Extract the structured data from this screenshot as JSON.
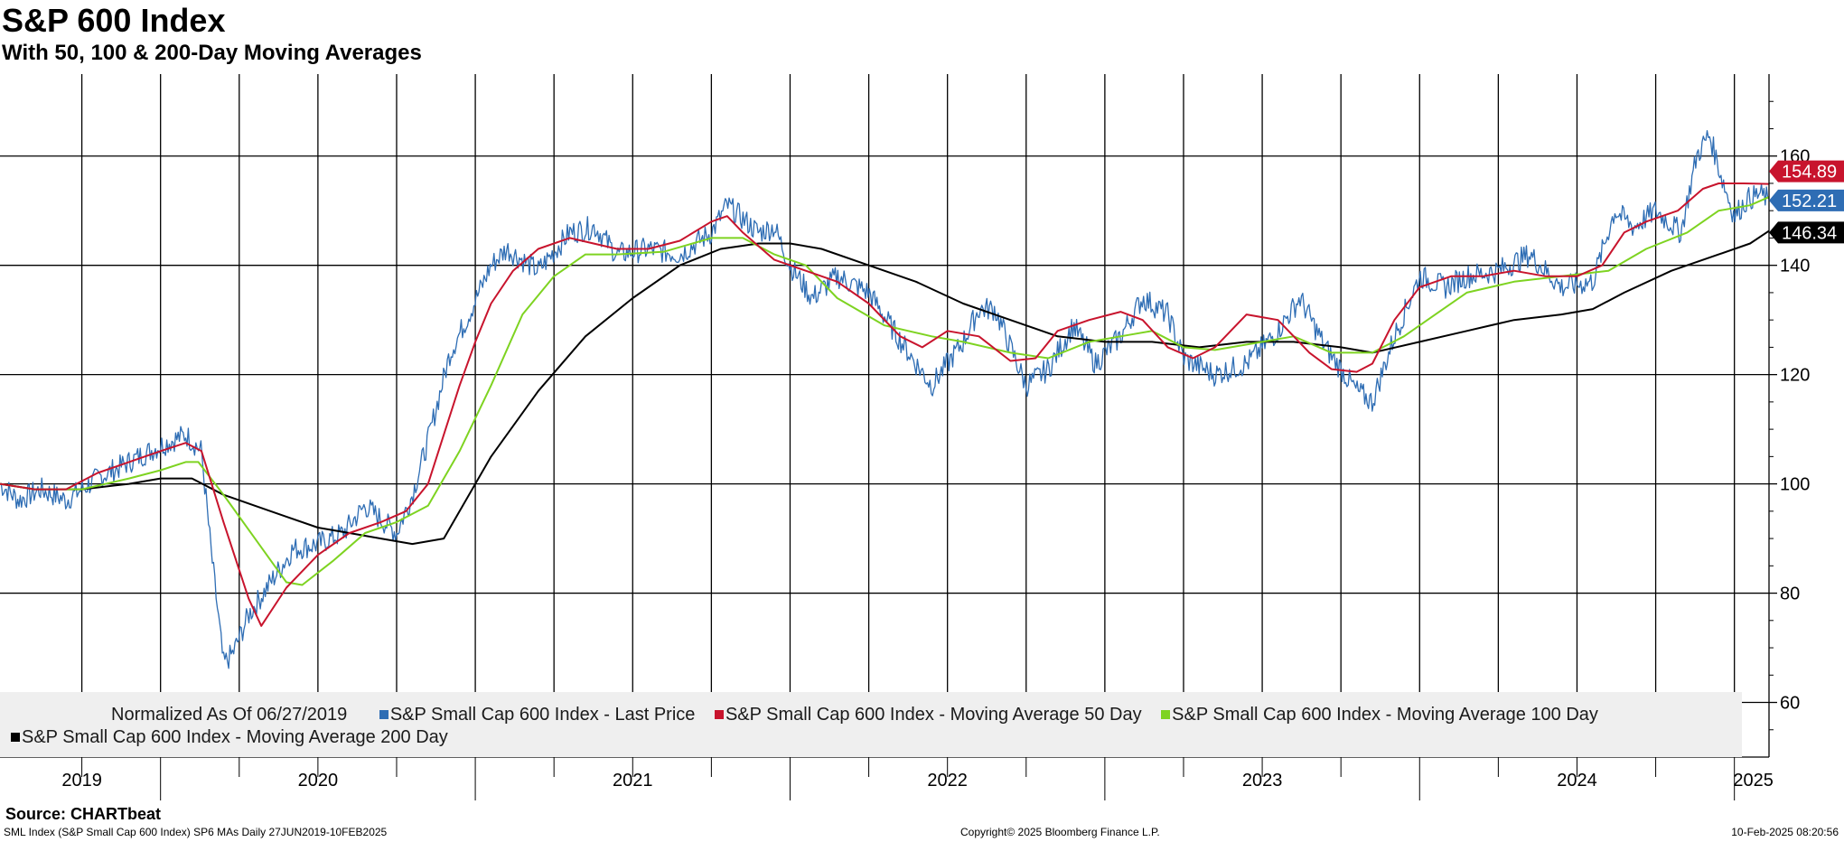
{
  "header": {
    "title": "S&P 600 Index",
    "subtitle": "With 50, 100 & 200-Day Moving Averages"
  },
  "legend": {
    "normalized_note": "Normalized As Of 06/27/2019",
    "items": [
      {
        "label": "S&P Small Cap 600 Index - Last Price",
        "color": "#2e6db4"
      },
      {
        "label": "S&P Small Cap 600 Index - Moving Average 50 Day",
        "color": "#c8142d"
      },
      {
        "label": "S&P Small Cap 600 Index - Moving Average 100 Day",
        "color": "#7ed321"
      },
      {
        "label": "S&P Small Cap 600 Index - Moving Average 200 Day",
        "color": "#000000"
      }
    ]
  },
  "footer": {
    "source": "Source: CHARTbeat",
    "ticker_info": "SML Index (S&P Small Cap 600 Index) SP6 MAs  Daily 27JUN2019-10FEB2025",
    "copyright": "Copyright© 2025 Bloomberg Finance L.P.",
    "timestamp": "10-Feb-2025 08:20:56"
  },
  "chart_data": {
    "type": "line",
    "title": "S&P 600 Index",
    "subtitle": "With 50, 100 & 200-Day Moving Averages",
    "x_range": [
      2019.49,
      2025.11
    ],
    "ylim": [
      50,
      175
    ],
    "y_ticks": [
      60,
      80,
      100,
      120,
      140,
      160
    ],
    "x_labels": [
      {
        "label": "2019",
        "pos": 2019.75
      },
      {
        "label": "2020",
        "pos": 2020.5
      },
      {
        "label": "2021",
        "pos": 2021.5
      },
      {
        "label": "2022",
        "pos": 2022.5
      },
      {
        "label": "2023",
        "pos": 2023.5
      },
      {
        "label": "2024",
        "pos": 2024.5
      },
      {
        "label": "2025",
        "pos": 2025.06
      }
    ],
    "year_boundaries": [
      2020.0,
      2021.0,
      2022.0,
      2023.0,
      2024.0,
      2025.0
    ],
    "grid": true,
    "legend_position": "bottom",
    "series": [
      {
        "name": "S&P Small Cap 600 Index - Last Price",
        "color": "#2e6db4",
        "last_value": "152.21",
        "noise": 2.2,
        "points": [
          [
            2019.49,
            100
          ],
          [
            2019.55,
            97
          ],
          [
            2019.62,
            99
          ],
          [
            2019.7,
            97
          ],
          [
            2019.8,
            101
          ],
          [
            2019.9,
            104
          ],
          [
            2020.0,
            107
          ],
          [
            2020.08,
            109
          ],
          [
            2020.13,
            106
          ],
          [
            2020.16,
            88
          ],
          [
            2020.2,
            67
          ],
          [
            2020.23,
            69
          ],
          [
            2020.28,
            76
          ],
          [
            2020.35,
            82
          ],
          [
            2020.42,
            88
          ],
          [
            2020.5,
            89
          ],
          [
            2020.58,
            91
          ],
          [
            2020.65,
            96
          ],
          [
            2020.75,
            91
          ],
          [
            2020.8,
            98
          ],
          [
            2020.85,
            108
          ],
          [
            2020.92,
            124
          ],
          [
            2020.98,
            131
          ],
          [
            2021.05,
            140
          ],
          [
            2021.1,
            143
          ],
          [
            2021.2,
            139
          ],
          [
            2021.3,
            146
          ],
          [
            2021.38,
            147
          ],
          [
            2021.45,
            142
          ],
          [
            2021.55,
            143
          ],
          [
            2021.65,
            142
          ],
          [
            2021.75,
            146
          ],
          [
            2021.8,
            151
          ],
          [
            2021.9,
            146
          ],
          [
            2021.95,
            147
          ],
          [
            2022.0,
            140
          ],
          [
            2022.07,
            134
          ],
          [
            2022.15,
            138
          ],
          [
            2022.25,
            135
          ],
          [
            2022.33,
            128
          ],
          [
            2022.4,
            122
          ],
          [
            2022.45,
            118
          ],
          [
            2022.55,
            126
          ],
          [
            2022.6,
            132
          ],
          [
            2022.65,
            132
          ],
          [
            2022.75,
            118
          ],
          [
            2022.82,
            121
          ],
          [
            2022.9,
            129
          ],
          [
            2022.97,
            122
          ],
          [
            2023.05,
            127
          ],
          [
            2023.12,
            134
          ],
          [
            2023.2,
            131
          ],
          [
            2023.25,
            123
          ],
          [
            2023.35,
            120
          ],
          [
            2023.45,
            122
          ],
          [
            2023.55,
            128
          ],
          [
            2023.62,
            134
          ],
          [
            2023.7,
            125
          ],
          [
            2023.8,
            117
          ],
          [
            2023.85,
            115
          ],
          [
            2023.92,
            127
          ],
          [
            2024.0,
            138
          ],
          [
            2024.08,
            136
          ],
          [
            2024.15,
            138
          ],
          [
            2024.25,
            139
          ],
          [
            2024.35,
            142
          ],
          [
            2024.45,
            136
          ],
          [
            2024.55,
            137
          ],
          [
            2024.62,
            150
          ],
          [
            2024.68,
            147
          ],
          [
            2024.75,
            150
          ],
          [
            2024.83,
            146
          ],
          [
            2024.88,
            160
          ],
          [
            2024.92,
            164
          ],
          [
            2024.96,
            156
          ],
          [
            2025.0,
            149
          ],
          [
            2025.04,
            152
          ],
          [
            2025.08,
            153
          ],
          [
            2025.11,
            152.2
          ]
        ]
      },
      {
        "name": "S&P Small Cap 600 Index - Moving Average 50 Day",
        "color": "#c8142d",
        "last_value": "154.89",
        "points": [
          [
            2019.49,
            100
          ],
          [
            2019.6,
            99
          ],
          [
            2019.7,
            99
          ],
          [
            2019.8,
            102
          ],
          [
            2019.9,
            104
          ],
          [
            2020.0,
            106
          ],
          [
            2020.08,
            107.5
          ],
          [
            2020.13,
            106
          ],
          [
            2020.2,
            93
          ],
          [
            2020.28,
            79
          ],
          [
            2020.32,
            74
          ],
          [
            2020.4,
            81
          ],
          [
            2020.5,
            87
          ],
          [
            2020.6,
            91
          ],
          [
            2020.7,
            93
          ],
          [
            2020.78,
            95
          ],
          [
            2020.85,
            100
          ],
          [
            2020.9,
            109
          ],
          [
            2020.95,
            118
          ],
          [
            2021.0,
            126
          ],
          [
            2021.05,
            133
          ],
          [
            2021.12,
            139
          ],
          [
            2021.2,
            143
          ],
          [
            2021.3,
            145
          ],
          [
            2021.45,
            143
          ],
          [
            2021.55,
            143
          ],
          [
            2021.65,
            144.5
          ],
          [
            2021.75,
            148
          ],
          [
            2021.8,
            149
          ],
          [
            2021.85,
            146
          ],
          [
            2021.95,
            141
          ],
          [
            2022.05,
            139
          ],
          [
            2022.15,
            137
          ],
          [
            2022.25,
            133
          ],
          [
            2022.35,
            127
          ],
          [
            2022.42,
            125
          ],
          [
            2022.5,
            128
          ],
          [
            2022.6,
            127
          ],
          [
            2022.7,
            122.5
          ],
          [
            2022.78,
            123
          ],
          [
            2022.85,
            128
          ],
          [
            2022.95,
            130
          ],
          [
            2023.05,
            131.5
          ],
          [
            2023.12,
            130
          ],
          [
            2023.2,
            125
          ],
          [
            2023.28,
            123
          ],
          [
            2023.35,
            125
          ],
          [
            2023.45,
            131
          ],
          [
            2023.55,
            130
          ],
          [
            2023.65,
            124
          ],
          [
            2023.72,
            121
          ],
          [
            2023.8,
            120.5
          ],
          [
            2023.85,
            122
          ],
          [
            2023.92,
            130
          ],
          [
            2024.0,
            136
          ],
          [
            2024.1,
            138
          ],
          [
            2024.2,
            138
          ],
          [
            2024.3,
            139
          ],
          [
            2024.4,
            138
          ],
          [
            2024.5,
            138
          ],
          [
            2024.58,
            140
          ],
          [
            2024.65,
            146
          ],
          [
            2024.72,
            148
          ],
          [
            2024.82,
            150
          ],
          [
            2024.9,
            154
          ],
          [
            2024.95,
            155
          ],
          [
            2025.03,
            155
          ],
          [
            2025.11,
            154.9
          ]
        ]
      },
      {
        "name": "S&P Small Cap 600 Index - Moving Average 100 Day",
        "color": "#7ed321",
        "last_value": "",
        "points": [
          [
            2019.49,
            100
          ],
          [
            2019.6,
            99
          ],
          [
            2019.75,
            99
          ],
          [
            2019.9,
            101
          ],
          [
            2020.0,
            102.5
          ],
          [
            2020.08,
            104
          ],
          [
            2020.12,
            104
          ],
          [
            2020.2,
            98
          ],
          [
            2020.3,
            90
          ],
          [
            2020.4,
            82
          ],
          [
            2020.45,
            81.5
          ],
          [
            2020.55,
            86
          ],
          [
            2020.65,
            91
          ],
          [
            2020.75,
            93
          ],
          [
            2020.85,
            96
          ],
          [
            2020.95,
            106
          ],
          [
            2021.05,
            118
          ],
          [
            2021.15,
            131
          ],
          [
            2021.25,
            138
          ],
          [
            2021.35,
            142
          ],
          [
            2021.45,
            142
          ],
          [
            2021.6,
            142.5
          ],
          [
            2021.75,
            145
          ],
          [
            2021.85,
            145
          ],
          [
            2021.95,
            142
          ],
          [
            2022.05,
            140
          ],
          [
            2022.15,
            134
          ],
          [
            2022.3,
            129
          ],
          [
            2022.45,
            127
          ],
          [
            2022.55,
            126
          ],
          [
            2022.7,
            124
          ],
          [
            2022.82,
            123
          ],
          [
            2022.95,
            126
          ],
          [
            2023.05,
            127
          ],
          [
            2023.15,
            128
          ],
          [
            2023.25,
            125
          ],
          [
            2023.35,
            124.5
          ],
          [
            2023.5,
            126
          ],
          [
            2023.6,
            127
          ],
          [
            2023.72,
            124
          ],
          [
            2023.85,
            124
          ],
          [
            2023.95,
            127
          ],
          [
            2024.05,
            131
          ],
          [
            2024.15,
            135
          ],
          [
            2024.3,
            137
          ],
          [
            2024.45,
            138
          ],
          [
            2024.6,
            139
          ],
          [
            2024.72,
            143
          ],
          [
            2024.85,
            146
          ],
          [
            2024.95,
            150
          ],
          [
            2025.05,
            151
          ],
          [
            2025.11,
            152.5
          ]
        ]
      },
      {
        "name": "S&P Small Cap 600 Index - Moving Average 200 Day",
        "color": "#000000",
        "last_value": "146.34",
        "points": [
          [
            2019.49,
            100
          ],
          [
            2019.6,
            99
          ],
          [
            2019.75,
            99
          ],
          [
            2019.9,
            100
          ],
          [
            2020.0,
            101
          ],
          [
            2020.1,
            101
          ],
          [
            2020.2,
            98
          ],
          [
            2020.3,
            96
          ],
          [
            2020.4,
            94
          ],
          [
            2020.5,
            92
          ],
          [
            2020.6,
            91
          ],
          [
            2020.7,
            90
          ],
          [
            2020.8,
            89
          ],
          [
            2020.9,
            90
          ],
          [
            2020.95,
            95
          ],
          [
            2021.05,
            105
          ],
          [
            2021.2,
            117
          ],
          [
            2021.35,
            127
          ],
          [
            2021.5,
            134
          ],
          [
            2021.65,
            140
          ],
          [
            2021.78,
            143
          ],
          [
            2021.9,
            144
          ],
          [
            2022.0,
            144
          ],
          [
            2022.1,
            143
          ],
          [
            2022.25,
            140
          ],
          [
            2022.4,
            137
          ],
          [
            2022.55,
            133
          ],
          [
            2022.7,
            130
          ],
          [
            2022.85,
            127
          ],
          [
            2023.0,
            126
          ],
          [
            2023.15,
            126
          ],
          [
            2023.3,
            125
          ],
          [
            2023.45,
            126
          ],
          [
            2023.6,
            126
          ],
          [
            2023.75,
            125
          ],
          [
            2023.85,
            124
          ],
          [
            2024.0,
            126
          ],
          [
            2024.15,
            128
          ],
          [
            2024.3,
            130
          ],
          [
            2024.45,
            131
          ],
          [
            2024.55,
            132
          ],
          [
            2024.65,
            135
          ],
          [
            2024.8,
            139
          ],
          [
            2024.95,
            142
          ],
          [
            2025.05,
            144
          ],
          [
            2025.11,
            146.3
          ]
        ]
      }
    ]
  }
}
